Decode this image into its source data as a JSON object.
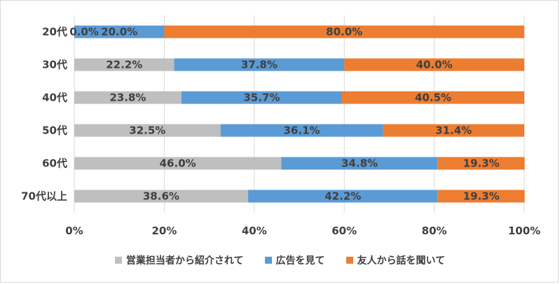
{
  "chart_data": {
    "type": "bar",
    "orientation": "horizontal",
    "stacked": true,
    "categories": [
      "20代",
      "30代",
      "40代",
      "50代",
      "60代",
      "70代以上"
    ],
    "series": [
      {
        "name": "営業担当者から紹介されて",
        "color": "#bfbfbf",
        "values": [
          0.0,
          22.2,
          23.8,
          32.5,
          46.0,
          38.6
        ],
        "labels": [
          "0.0%",
          "22.2%",
          "23.8%",
          "32.5%",
          "46.0%",
          "38.6%"
        ]
      },
      {
        "name": "広告を見て",
        "color": "#5b9bd5",
        "values": [
          20.0,
          37.8,
          35.7,
          36.1,
          34.8,
          42.2
        ],
        "labels": [
          "20.0%",
          "37.8%",
          "35.7%",
          "36.1%",
          "34.8%",
          "42.2%"
        ]
      },
      {
        "name": "友人から話を聞いて",
        "color": "#ed7d31",
        "values": [
          80.0,
          40.0,
          40.5,
          31.4,
          19.3,
          19.3
        ],
        "labels": [
          "80.0%",
          "40.0%",
          "40.5%",
          "31.4%",
          "19.3%",
          "19.3%"
        ]
      }
    ],
    "x_ticks": [
      "0%",
      "20%",
      "40%",
      "60%",
      "80%",
      "100%"
    ],
    "xlim": [
      0,
      100
    ],
    "grid": true,
    "legend_position": "bottom",
    "title": "",
    "xlabel": "",
    "ylabel": ""
  }
}
